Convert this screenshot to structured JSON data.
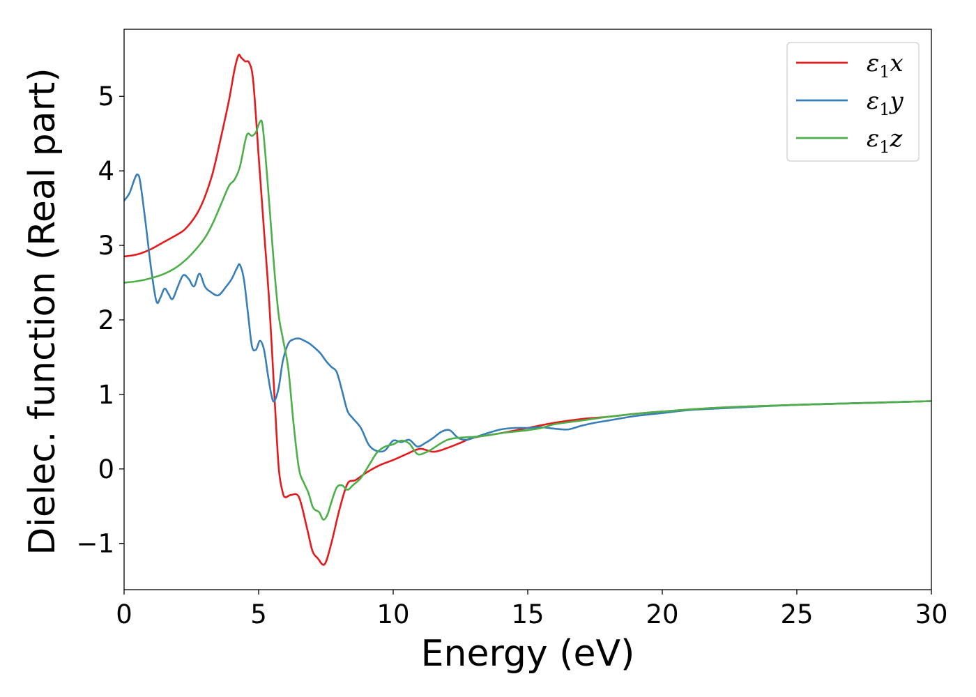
{
  "chart_data": {
    "type": "line",
    "xlabel": "Energy (eV)",
    "ylabel": "Dielec. function (Real part)",
    "xlim": [
      0,
      30
    ],
    "ylim": [
      -1.62,
      5.9
    ],
    "xticks": [
      0,
      5,
      10,
      15,
      20,
      25,
      30
    ],
    "xtick_labels": [
      "0",
      "5",
      "10",
      "15",
      "20",
      "25",
      "30"
    ],
    "yticks": [
      -1,
      0,
      1,
      2,
      3,
      4,
      5
    ],
    "ytick_labels": [
      "−1",
      "0",
      "1",
      "2",
      "3",
      "4",
      "5"
    ],
    "grid": false,
    "legend_position": "top-right",
    "series": [
      {
        "name": "ε1x",
        "legend_base": "ε",
        "legend_sub": "1",
        "legend_suffix": "x",
        "color": "#e41a1c",
        "x": [
          0,
          0.5,
          1.0,
          1.5,
          2.0,
          2.3,
          2.7,
          3.0,
          3.3,
          3.6,
          3.9,
          4.1,
          4.25,
          4.35,
          4.5,
          4.65,
          4.8,
          5.0,
          5.2,
          5.4,
          5.6,
          5.75,
          5.9,
          6.0,
          6.2,
          6.5,
          6.8,
          7.0,
          7.2,
          7.45,
          7.7,
          8.0,
          8.3,
          8.6,
          9.0,
          9.5,
          10.0,
          10.5,
          11.0,
          11.5,
          12.0,
          12.5,
          13.0,
          14.0,
          15.0,
          16.0,
          17.0,
          18.0,
          19.0,
          20.0,
          22.0,
          25.0,
          28.0,
          30.0
        ],
        "y": [
          2.85,
          2.88,
          2.95,
          3.05,
          3.15,
          3.23,
          3.42,
          3.65,
          3.98,
          4.45,
          4.95,
          5.35,
          5.55,
          5.52,
          5.47,
          5.45,
          5.2,
          4.2,
          3.2,
          2.2,
          0.9,
          0.0,
          -0.32,
          -0.38,
          -0.35,
          -0.38,
          -0.8,
          -1.1,
          -1.2,
          -1.28,
          -1.0,
          -0.55,
          -0.2,
          -0.15,
          -0.05,
          0.05,
          0.12,
          0.2,
          0.27,
          0.23,
          0.28,
          0.35,
          0.42,
          0.48,
          0.55,
          0.62,
          0.67,
          0.7,
          0.74,
          0.77,
          0.82,
          0.86,
          0.89,
          0.91
        ]
      },
      {
        "name": "ε1y",
        "legend_base": "ε",
        "legend_sub": "1",
        "legend_suffix": "y",
        "color": "#377eb8",
        "x": [
          0,
          0.2,
          0.4,
          0.5,
          0.6,
          0.8,
          1.0,
          1.2,
          1.35,
          1.5,
          1.65,
          1.8,
          2.0,
          2.2,
          2.4,
          2.6,
          2.8,
          3.0,
          3.2,
          3.5,
          3.8,
          4.0,
          4.2,
          4.3,
          4.45,
          4.6,
          4.75,
          4.9,
          5.05,
          5.2,
          5.35,
          5.5,
          5.6,
          5.75,
          5.9,
          6.1,
          6.3,
          6.5,
          6.7,
          6.9,
          7.1,
          7.3,
          7.5,
          7.7,
          7.9,
          8.1,
          8.3,
          8.5,
          8.8,
          9.1,
          9.4,
          9.7,
          10.0,
          10.3,
          10.6,
          10.9,
          11.2,
          11.5,
          11.8,
          12.1,
          12.4,
          12.7,
          13.0,
          13.5,
          14.0,
          14.5,
          15.0,
          15.5,
          16.0,
          16.5,
          17.0,
          17.5,
          18.0,
          19.0,
          20.0,
          21.0,
          22.0,
          25.0,
          28.0,
          30.0
        ],
        "y": [
          3.6,
          3.7,
          3.9,
          3.95,
          3.85,
          3.3,
          2.7,
          2.25,
          2.3,
          2.42,
          2.35,
          2.28,
          2.45,
          2.6,
          2.55,
          2.45,
          2.62,
          2.45,
          2.38,
          2.33,
          2.45,
          2.55,
          2.7,
          2.74,
          2.55,
          2.1,
          1.65,
          1.6,
          1.72,
          1.6,
          1.25,
          0.95,
          0.92,
          1.1,
          1.45,
          1.68,
          1.74,
          1.75,
          1.72,
          1.68,
          1.62,
          1.55,
          1.45,
          1.37,
          1.3,
          1.05,
          0.78,
          0.68,
          0.55,
          0.32,
          0.24,
          0.25,
          0.38,
          0.36,
          0.39,
          0.3,
          0.35,
          0.42,
          0.5,
          0.52,
          0.42,
          0.39,
          0.42,
          0.48,
          0.53,
          0.55,
          0.55,
          0.56,
          0.54,
          0.53,
          0.58,
          0.62,
          0.65,
          0.71,
          0.75,
          0.79,
          0.81,
          0.86,
          0.89,
          0.91
        ]
      },
      {
        "name": "ε1z",
        "legend_base": "ε",
        "legend_sub": "1",
        "legend_suffix": "z",
        "color": "#4daf4a",
        "x": [
          0,
          0.5,
          1.0,
          1.5,
          2.0,
          2.5,
          3.0,
          3.3,
          3.6,
          3.9,
          4.1,
          4.3,
          4.5,
          4.6,
          4.75,
          4.9,
          5.05,
          5.15,
          5.3,
          5.45,
          5.6,
          5.75,
          5.9,
          6.1,
          6.3,
          6.5,
          6.7,
          6.85,
          7.0,
          7.1,
          7.25,
          7.4,
          7.55,
          7.7,
          7.9,
          8.1,
          8.3,
          8.5,
          8.8,
          9.1,
          9.4,
          9.7,
          10.0,
          10.3,
          10.6,
          10.9,
          11.2,
          11.5,
          11.8,
          12.1,
          12.5,
          13.0,
          13.5,
          14.0,
          14.5,
          15.0,
          15.5,
          16.0,
          17.0,
          18.0,
          19.0,
          20.0,
          22.0,
          25.0,
          28.0,
          30.0
        ],
        "y": [
          2.5,
          2.52,
          2.56,
          2.62,
          2.72,
          2.88,
          3.1,
          3.3,
          3.55,
          3.8,
          3.88,
          4.05,
          4.4,
          4.5,
          4.47,
          4.52,
          4.66,
          4.6,
          4.0,
          3.3,
          2.6,
          2.05,
          1.75,
          1.35,
          0.6,
          0.0,
          -0.2,
          -0.32,
          -0.5,
          -0.55,
          -0.58,
          -0.68,
          -0.62,
          -0.45,
          -0.25,
          -0.22,
          -0.28,
          -0.22,
          -0.12,
          0.05,
          0.22,
          0.3,
          0.33,
          0.38,
          0.34,
          0.2,
          0.22,
          0.28,
          0.35,
          0.4,
          0.42,
          0.43,
          0.45,
          0.48,
          0.5,
          0.52,
          0.55,
          0.6,
          0.65,
          0.7,
          0.74,
          0.77,
          0.82,
          0.86,
          0.89,
          0.91
        ]
      }
    ]
  }
}
